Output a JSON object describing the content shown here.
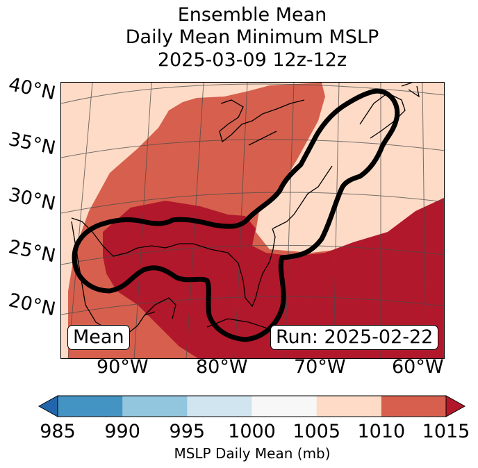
{
  "title": {
    "line1": "Ensemble Mean",
    "line2": "Daily Mean Minimum MSLP",
    "line3": "2025-03-09 12z-12z"
  },
  "latitude_labels": [
    "40°N",
    "35°N",
    "30°N",
    "25°N",
    "20°N"
  ],
  "longitude_labels": [
    "90°W",
    "80°W",
    "70°W",
    "60°W"
  ],
  "boxes": {
    "left": "Mean",
    "right": "Run: 2025-02-22"
  },
  "colorbar": {
    "ticks": [
      "985",
      "990",
      "995",
      "1000",
      "1005",
      "1010",
      "1015"
    ],
    "label": "MSLP Daily Mean (mb)",
    "colors": [
      "#2166ac",
      "#4393c3",
      "#92c5de",
      "#d1e5f0",
      "#f7f7f7",
      "#fddbc7",
      "#d6604d",
      "#b2182b"
    ]
  },
  "map_colors": {
    "band_1005_1010": "#fddbc7",
    "band_1010_1015": "#d6604d",
    "band_1015_plus": "#b2182b",
    "contour": "#000000"
  }
}
